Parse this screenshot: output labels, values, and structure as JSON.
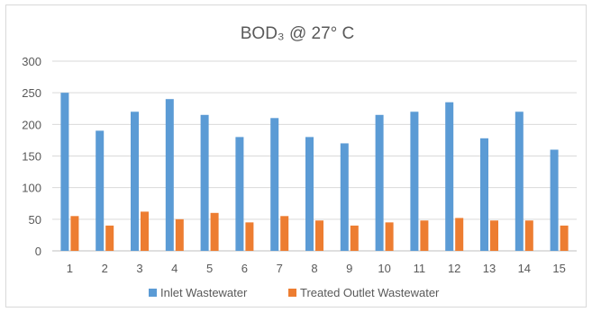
{
  "chart_data": {
    "type": "bar",
    "title": "BOD₃ @ 27° C",
    "xlabel": "",
    "ylabel": "",
    "categories": [
      "1",
      "2",
      "3",
      "4",
      "5",
      "6",
      "7",
      "8",
      "9",
      "10",
      "11",
      "12",
      "13",
      "14",
      "15"
    ],
    "ylim": [
      0,
      300
    ],
    "yticks": [
      "0",
      "50",
      "100",
      "150",
      "200",
      "250",
      "300"
    ],
    "grid": true,
    "legend_position": "bottom",
    "series": [
      {
        "name": "Inlet Wastewater",
        "color": "#5b9bd5",
        "values": [
          250,
          190,
          220,
          240,
          215,
          180,
          210,
          180,
          170,
          215,
          220,
          235,
          178,
          220,
          160
        ]
      },
      {
        "name": "Treated Outlet Wastewater",
        "color": "#ed7d31",
        "values": [
          55,
          40,
          62,
          50,
          60,
          45,
          55,
          48,
          40,
          45,
          48,
          52,
          48,
          48,
          40
        ]
      }
    ]
  }
}
